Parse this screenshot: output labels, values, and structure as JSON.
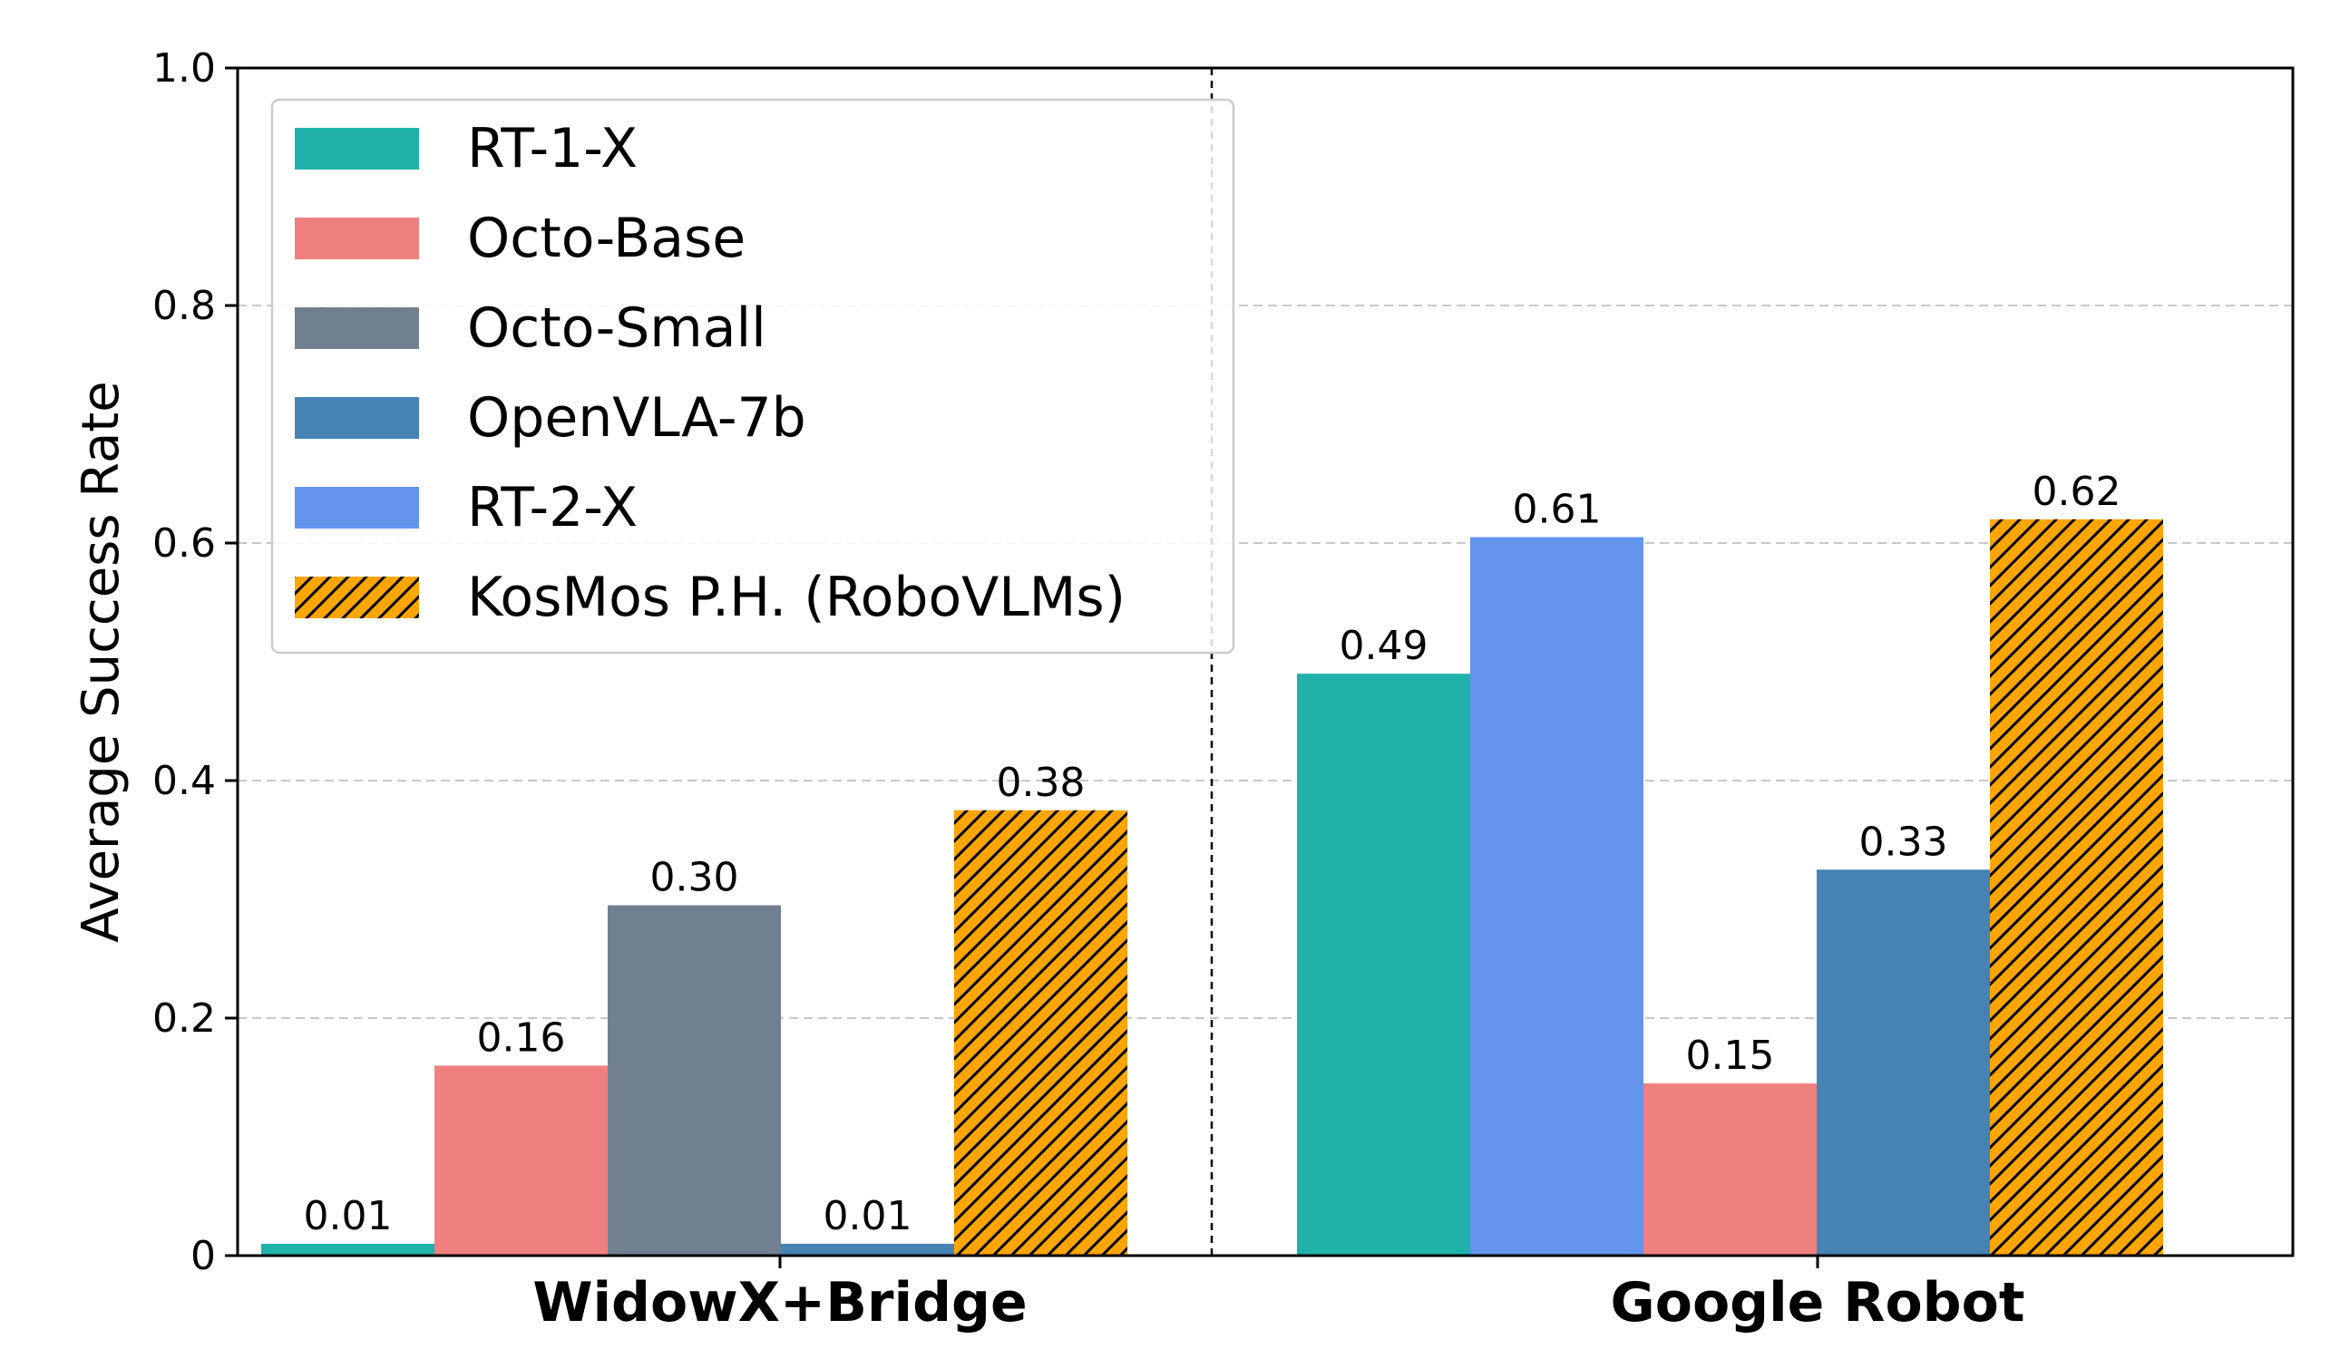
{
  "chart_data": {
    "type": "bar",
    "categories": [
      "WidowX+Bridge",
      "Google Robot"
    ],
    "ylabel": "Average Success Rate",
    "xlabel": "",
    "ylim": [
      0,
      1.0
    ],
    "yticks": [
      "0",
      "0.2",
      "0.4",
      "0.6",
      "0.8",
      "1.0"
    ],
    "grid": "y-dashed",
    "legend_position": "top-left",
    "groups": [
      {
        "category": "WidowX+Bridge",
        "bars": [
          {
            "series": "RT-1-X",
            "value": 0.01,
            "label": "0.01"
          },
          {
            "series": "Octo-Base",
            "value": 0.16,
            "label": "0.16"
          },
          {
            "series": "Octo-Small",
            "value": 0.295,
            "label": "0.30"
          },
          {
            "series": "OpenVLA-7b",
            "value": 0.01,
            "label": "0.01"
          },
          {
            "series": "KosMos P.H. (RoboVLMs)",
            "value": 0.375,
            "label": "0.38"
          }
        ]
      },
      {
        "category": "Google Robot",
        "bars": [
          {
            "series": "RT-1-X",
            "value": 0.49,
            "label": "0.49"
          },
          {
            "series": "RT-2-X",
            "value": 0.605,
            "label": "0.61"
          },
          {
            "series": "Octo-Base",
            "value": 0.145,
            "label": "0.15"
          },
          {
            "series": "OpenVLA-7b",
            "value": 0.325,
            "label": "0.33"
          },
          {
            "series": "KosMos P.H. (RoboVLMs)",
            "value": 0.62,
            "label": "0.62"
          }
        ]
      }
    ],
    "series": [
      {
        "name": "RT-1-X",
        "color": "#20b2aa",
        "hatch": false
      },
      {
        "name": "Octo-Base",
        "color": "#f08080",
        "hatch": false
      },
      {
        "name": "Octo-Small",
        "color": "#708090",
        "hatch": false
      },
      {
        "name": "OpenVLA-7b",
        "color": "#4682b4",
        "hatch": false
      },
      {
        "name": "RT-2-X",
        "color": "#6495ed",
        "hatch": false
      },
      {
        "name": "KosMos P.H. (RoboVLMs)",
        "color": "#ffa500",
        "hatch": true
      }
    ]
  }
}
